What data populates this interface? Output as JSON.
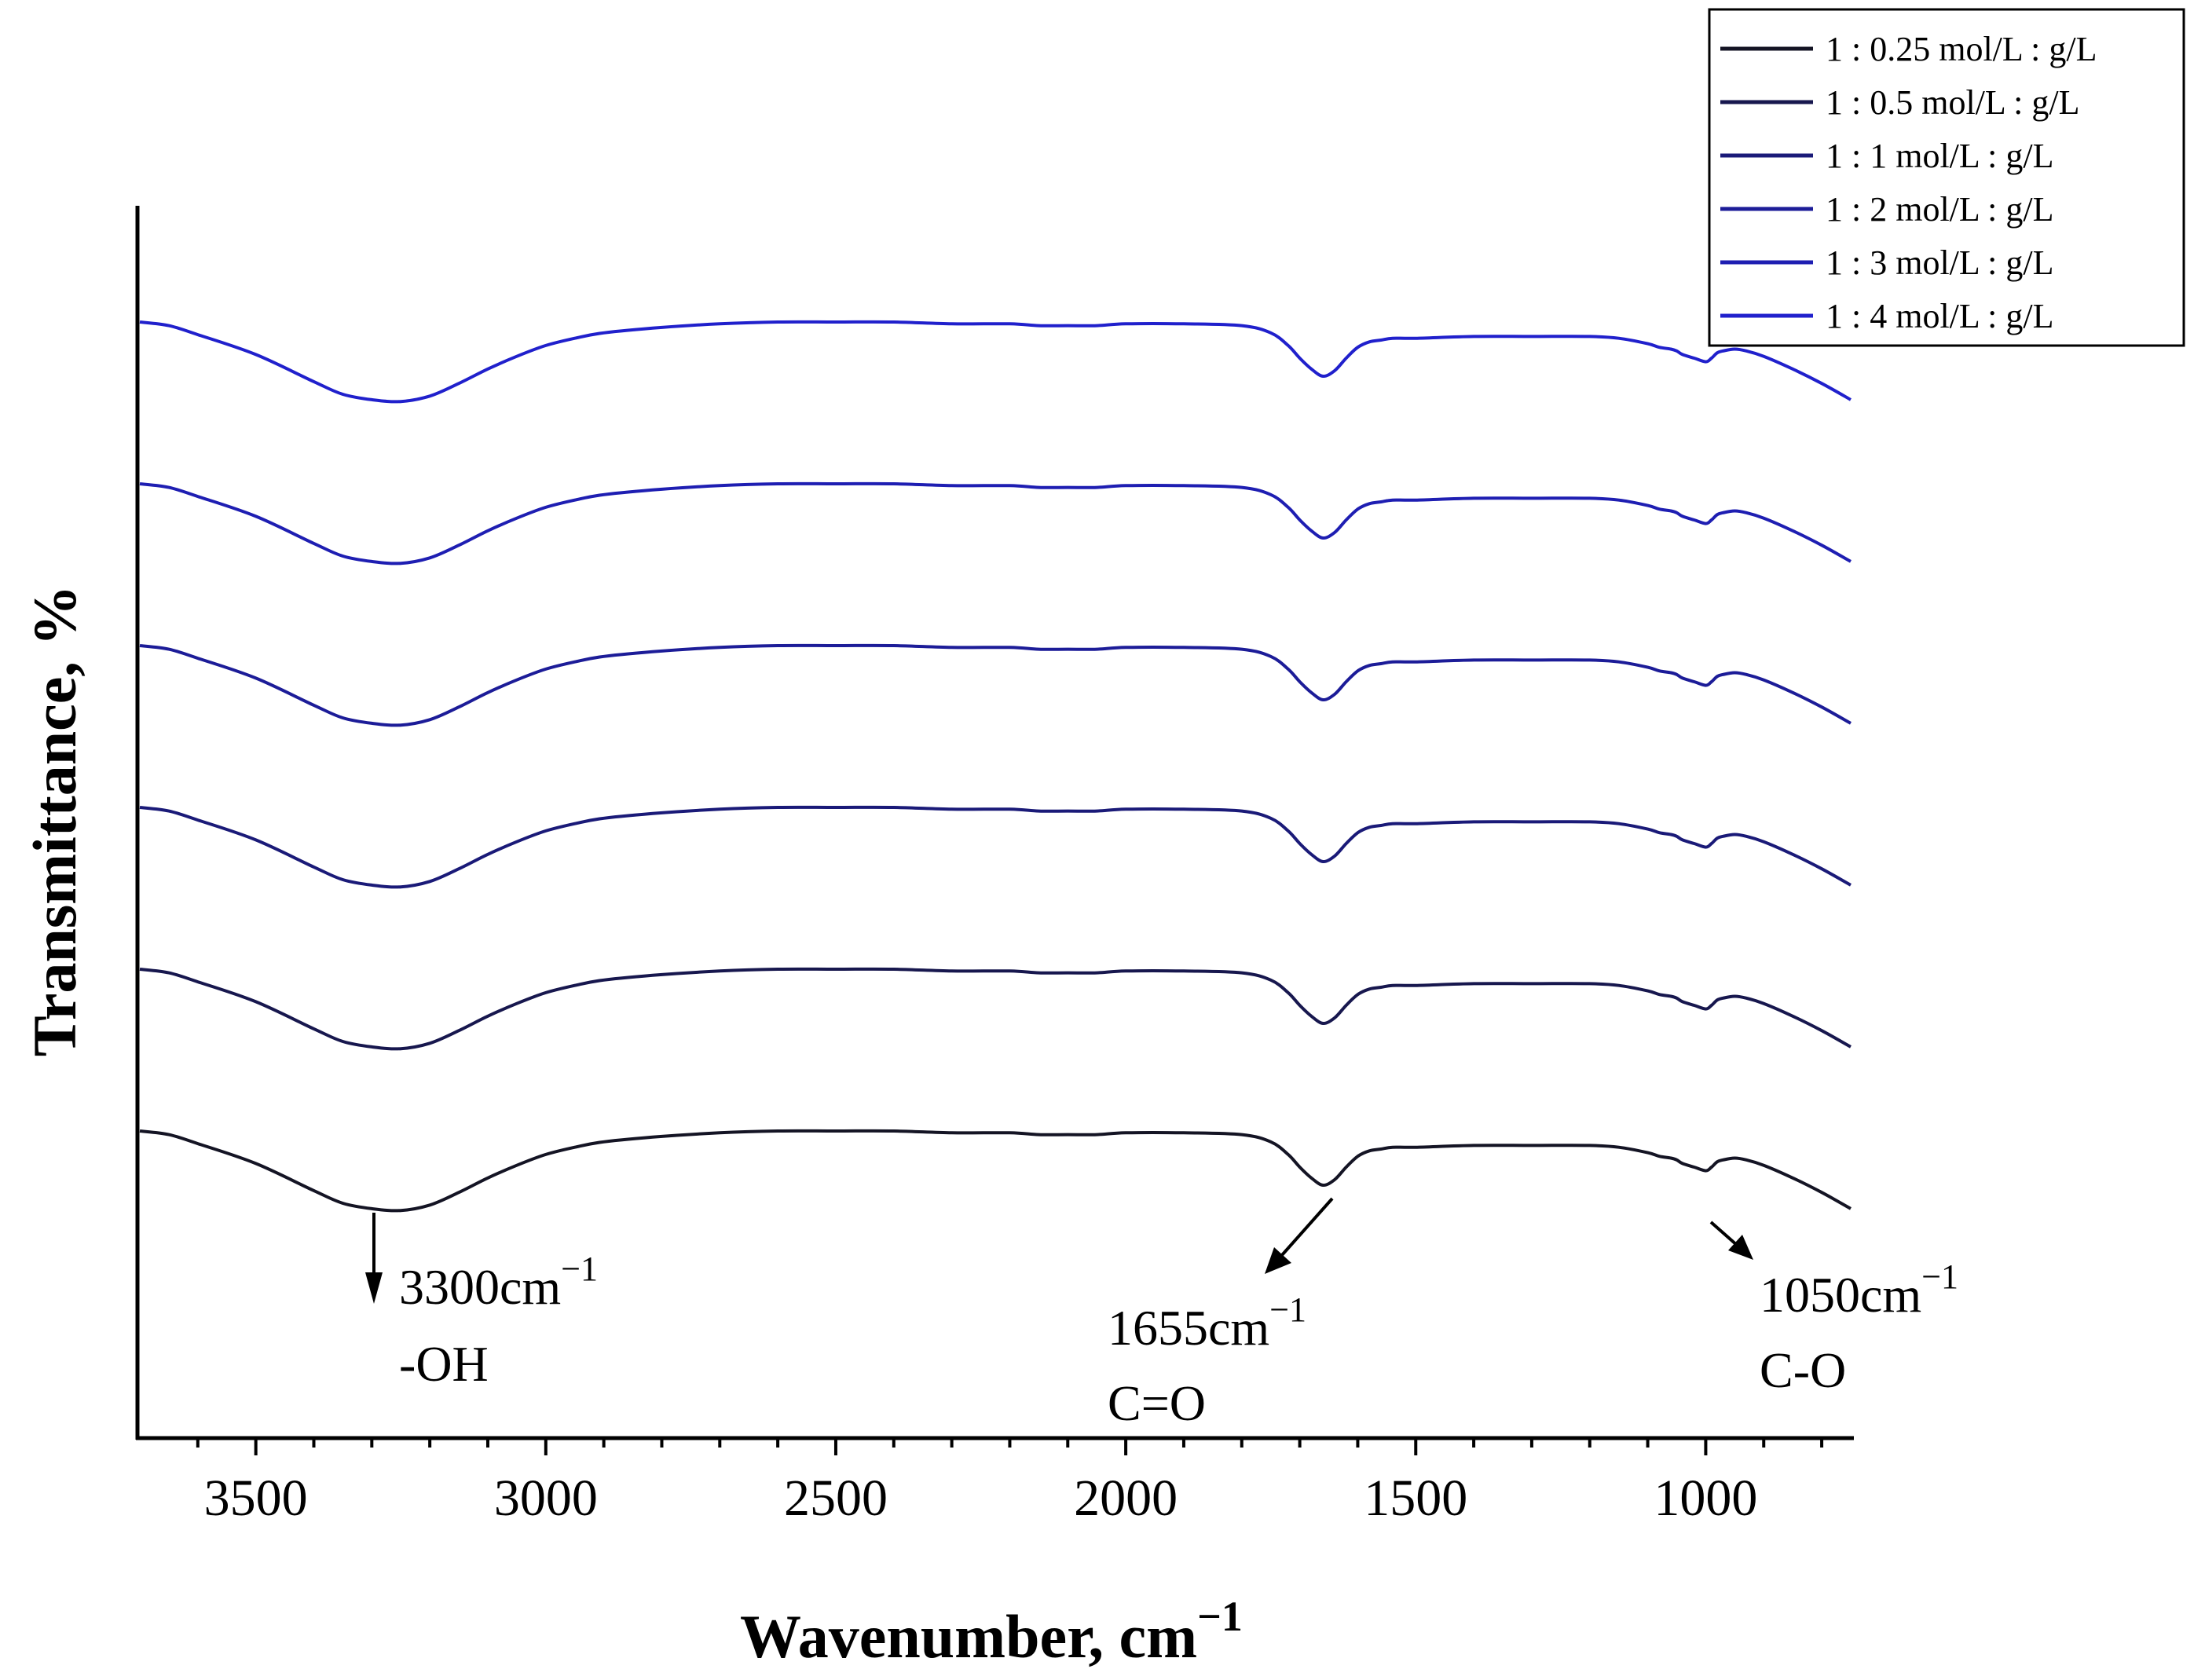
{
  "chart_data": {
    "type": "line",
    "title": "",
    "xlabel": "Wavenumber, cm",
    "xlabel_sup": "−1",
    "ylabel": "Transmittance, %",
    "xlim": [
      3700,
      750
    ],
    "xticks": [
      3500,
      3000,
      2500,
      2000,
      1500,
      1000
    ],
    "xtick_labels": [
      "3500",
      "3000",
      "2500",
      "2000",
      "1500",
      "1000"
    ],
    "y_ticks_shown": false,
    "legend_position": "top-right",
    "series": [
      {
        "name": "1 : 0.25 mol/L : g/L",
        "color": "#141424",
        "offset": 0
      },
      {
        "name": "1 : 0.5 mol/L : g/L",
        "color": "#17174e",
        "offset": 1
      },
      {
        "name": "1 : 1 mol/L : g/L",
        "color": "#1a1a78",
        "offset": 2
      },
      {
        "name": "1 : 2 mol/L : g/L",
        "color": "#1c1c98",
        "offset": 3
      },
      {
        "name": "1 : 3 mol/L : g/L",
        "color": "#1e1eb2",
        "offset": 4
      },
      {
        "name": "1 : 4 mol/L : g/L",
        "color": "#2020cc",
        "offset": 5
      }
    ],
    "profile_x": [
      3700,
      3650,
      3600,
      3500,
      3400,
      3350,
      3300,
      3250,
      3200,
      3150,
      3100,
      3050,
      3000,
      2950,
      2900,
      2800,
      2700,
      2600,
      2500,
      2400,
      2300,
      2200,
      2150,
      2100,
      2050,
      2000,
      1900,
      1800,
      1750,
      1720,
      1700,
      1680,
      1660,
      1640,
      1620,
      1600,
      1580,
      1560,
      1540,
      1500,
      1400,
      1300,
      1200,
      1150,
      1100,
      1080,
      1060,
      1050,
      1040,
      1020,
      1000,
      990,
      980,
      970,
      950,
      930,
      900,
      850,
      800,
      750
    ],
    "profile_y": [
      0.0,
      0.02,
      0.07,
      0.18,
      0.33,
      0.4,
      0.43,
      0.44,
      0.41,
      0.34,
      0.26,
      0.19,
      0.13,
      0.09,
      0.06,
      0.03,
      0.01,
      0.0,
      0.0,
      0.0,
      0.01,
      0.01,
      0.02,
      0.02,
      0.02,
      0.01,
      0.01,
      0.02,
      0.06,
      0.13,
      0.2,
      0.26,
      0.3,
      0.27,
      0.2,
      0.14,
      0.11,
      0.1,
      0.09,
      0.09,
      0.08,
      0.08,
      0.08,
      0.09,
      0.12,
      0.14,
      0.15,
      0.16,
      0.18,
      0.2,
      0.22,
      0.2,
      0.17,
      0.16,
      0.15,
      0.16,
      0.19,
      0.26,
      0.34,
      0.43
    ],
    "annotations": [
      {
        "label": "3300cm",
        "sup": "−1",
        "sublabel": "-OH",
        "wavenumber": 3300
      },
      {
        "label": "1655cm",
        "sup": "−1",
        "sublabel": "C=O",
        "wavenumber": 1655
      },
      {
        "label": "1050cm",
        "sup": "−1",
        "sublabel": "C-O",
        "wavenumber": 1050
      }
    ]
  }
}
